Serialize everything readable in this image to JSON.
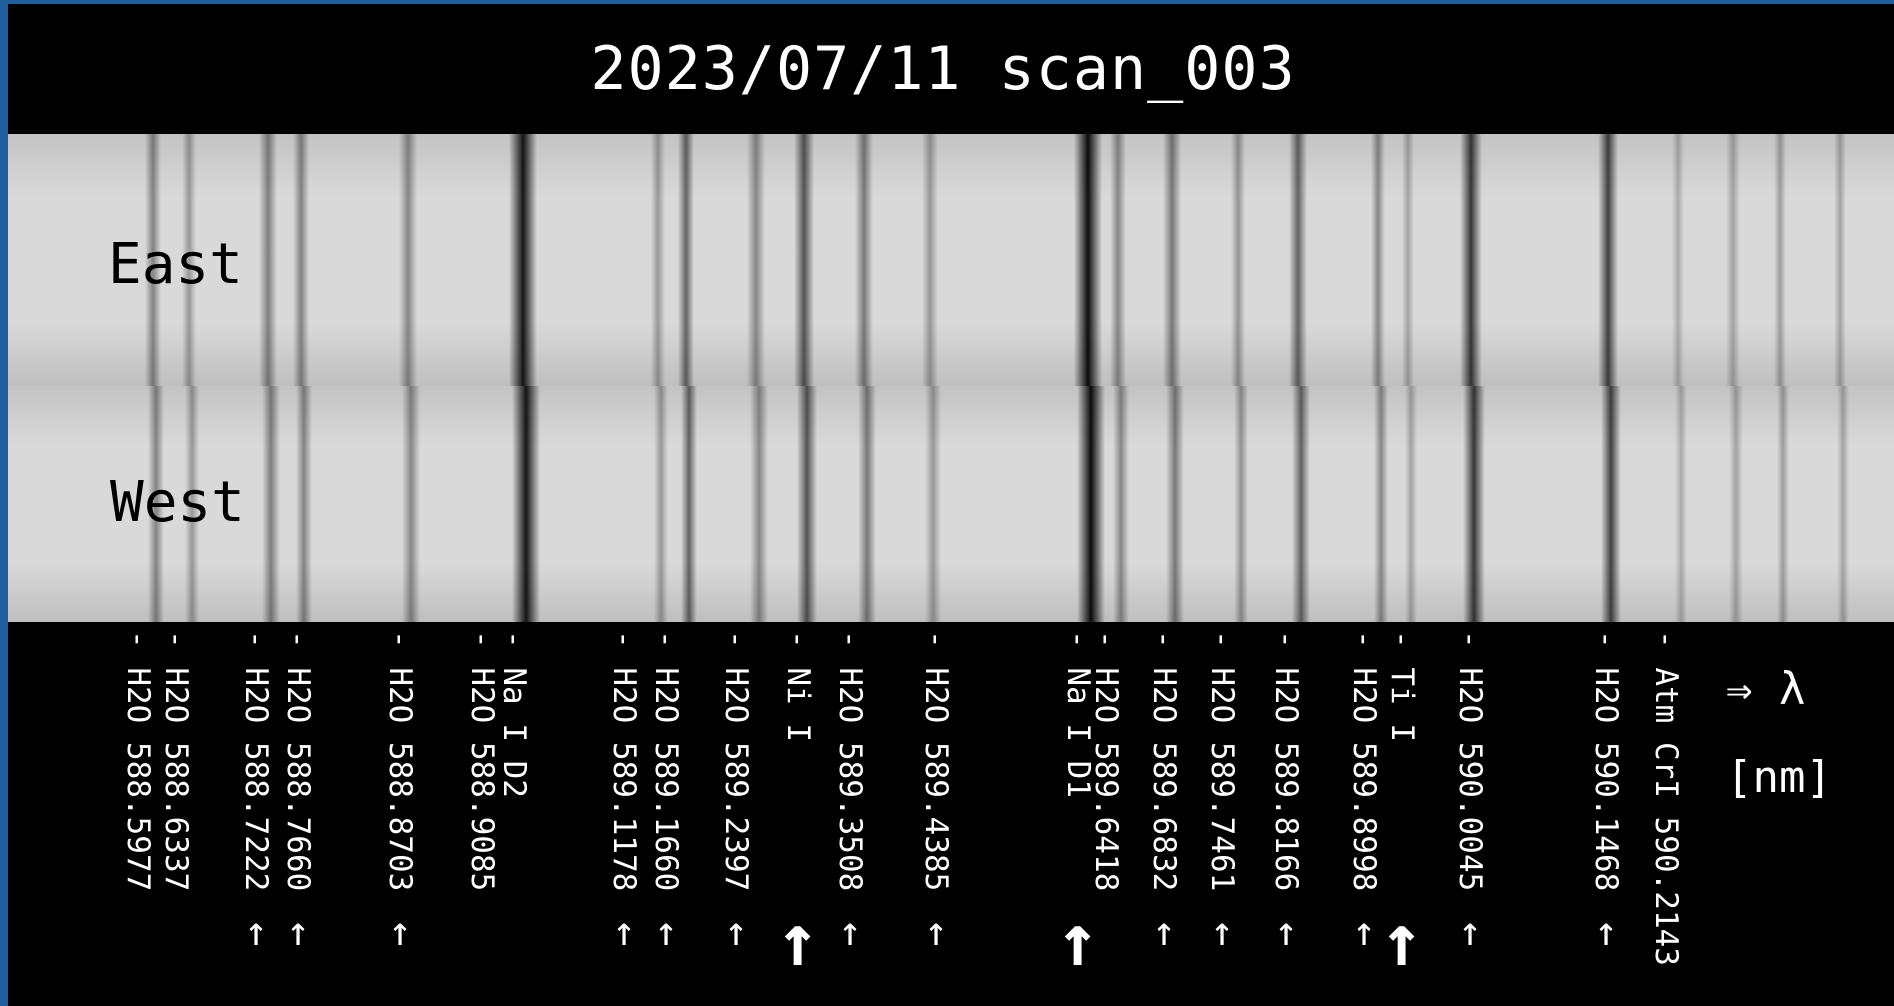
{
  "title": "2023/07/11 scan_003",
  "bands": {
    "east_label": "East",
    "west_label": "West"
  },
  "units": {
    "arrow_lambda": "⇒ λ",
    "nm": "[nm]"
  },
  "lines": [
    {
      "text": "- H2O 588.5977",
      "arrow": false
    },
    {
      "text": "- H2O 588.6337",
      "arrow": false
    },
    {
      "text": "- H2O 588.7222",
      "arrow": true
    },
    {
      "text": "- H2O 588.7660",
      "arrow": true
    },
    {
      "text": "- H2O 588.8703",
      "arrow": true
    },
    {
      "text": "- H2O 588.9085",
      "arrow": false
    },
    {
      "text": "- Na I D2",
      "arrow": false
    },
    {
      "text": "- H2O 589.1178",
      "arrow": true
    },
    {
      "text": "- H2O 589.1660",
      "arrow": true
    },
    {
      "text": "- H2O 589.2397",
      "arrow": true
    },
    {
      "text": "- Ni I",
      "arrow": "big"
    },
    {
      "text": "- H2O 589.3508",
      "arrow": true
    },
    {
      "text": "- H2O 589.4385",
      "arrow": true
    },
    {
      "text": "- Na I D1",
      "arrow": "big"
    },
    {
      "text": "- H2O 589.6418",
      "arrow": false
    },
    {
      "text": "- H2O 589.6832",
      "arrow": true
    },
    {
      "text": "- H2O 589.7461",
      "arrow": true
    },
    {
      "text": "- H2O 589.8166",
      "arrow": true
    },
    {
      "text": "- H2O 589.8998",
      "arrow": true
    },
    {
      "text": "- Ti I",
      "arrow": "big"
    },
    {
      "text": "- H2O 590.0045",
      "arrow": true
    },
    {
      "text": "- H2O 590.1468",
      "arrow": true
    },
    {
      "text": "- Atm CrI 590.2143",
      "arrow": false
    }
  ]
}
